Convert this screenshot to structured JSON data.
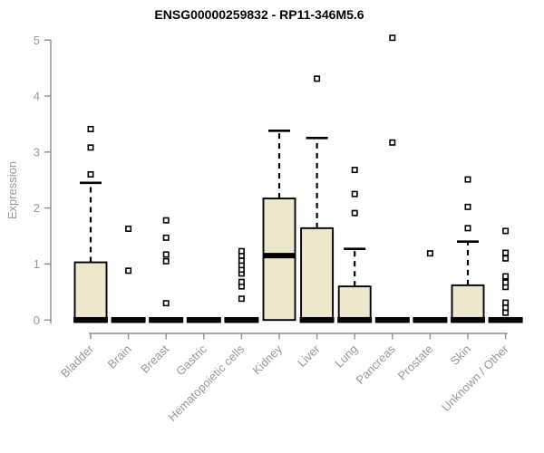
{
  "page": {
    "background_color": "#FFFFFF"
  },
  "colors": {
    "box_fill": "#EDE7CC",
    "box_border": "#000000",
    "median_color": "#000000",
    "axis_color": "#8E8E8E",
    "axis_label_color": "#999999",
    "title_color": "#000000",
    "outlier_fill": "#FFFFFF",
    "outlier_border": "#000000"
  },
  "chart_data": {
    "type": "boxplot",
    "title": "ENSG00000259832 - RP11-346M5.6",
    "xlabel": "",
    "ylabel": "Expression",
    "ylim": [
      0,
      5
    ],
    "yticks": [
      0,
      1,
      2,
      3,
      4,
      5
    ],
    "grid": "off",
    "legend": "none",
    "categories": [
      "Bladder",
      "Brain",
      "Breast",
      "Gastric",
      "Hematopoietic cells",
      "Kidney",
      "Liver",
      "Lung",
      "Pancreas",
      "Prostate",
      "Skin",
      "Unknown / Other"
    ],
    "boxes": [
      {
        "category": "Bladder",
        "q1": 0,
        "median": 0,
        "q3": 1.03,
        "whisker_low": 0,
        "whisker_high": 2.45,
        "outliers": [
          2.6,
          3.08,
          3.41
        ]
      },
      {
        "category": "Brain",
        "q1": 0,
        "median": 0,
        "q3": 0,
        "whisker_low": 0,
        "whisker_high": 0,
        "outliers": [
          0.88,
          1.63
        ]
      },
      {
        "category": "Breast",
        "q1": 0,
        "median": 0,
        "q3": 0,
        "whisker_low": 0,
        "whisker_high": 0,
        "outliers": [
          0.3,
          1.05,
          1.17,
          1.47,
          1.78
        ]
      },
      {
        "category": "Gastric",
        "q1": 0,
        "median": 0,
        "q3": 0,
        "whisker_low": 0,
        "whisker_high": 0,
        "outliers": []
      },
      {
        "category": "Hematopoietic cells",
        "q1": 0,
        "median": 0,
        "q3": 0,
        "whisker_low": 0,
        "whisker_high": 0,
        "outliers": [
          0.38,
          0.6,
          0.68,
          0.83,
          0.9,
          0.98,
          1.06,
          1.15,
          1.23
        ]
      },
      {
        "category": "Kidney",
        "q1": 0,
        "median": 1.15,
        "q3": 2.17,
        "whisker_low": 0,
        "whisker_high": 3.38,
        "outliers": []
      },
      {
        "category": "Liver",
        "q1": 0,
        "median": 0,
        "q3": 1.64,
        "whisker_low": 0,
        "whisker_high": 3.25,
        "outliers": [
          4.31
        ]
      },
      {
        "category": "Lung",
        "q1": 0,
        "median": 0,
        "q3": 0.6,
        "whisker_low": 0,
        "whisker_high": 1.27,
        "outliers": [
          1.91,
          2.25,
          2.68
        ]
      },
      {
        "category": "Pancreas",
        "q1": 0,
        "median": 0,
        "q3": 0,
        "whisker_low": 0,
        "whisker_high": 0,
        "outliers": [
          3.17,
          5.04
        ]
      },
      {
        "category": "Prostate",
        "q1": 0,
        "median": 0,
        "q3": 0,
        "whisker_low": 0,
        "whisker_high": 0,
        "outliers": [
          1.19
        ]
      },
      {
        "category": "Skin",
        "q1": 0,
        "median": 0,
        "q3": 0.62,
        "whisker_low": 0,
        "whisker_high": 1.4,
        "outliers": [
          1.64,
          2.02,
          2.51
        ]
      },
      {
        "category": "Unknown / Other",
        "q1": 0,
        "median": 0,
        "q3": 0,
        "whisker_low": 0,
        "whisker_high": 0,
        "outliers": [
          0.13,
          0.22,
          0.31,
          0.59,
          0.67,
          0.78,
          1.1,
          1.2,
          1.59
        ]
      }
    ]
  }
}
